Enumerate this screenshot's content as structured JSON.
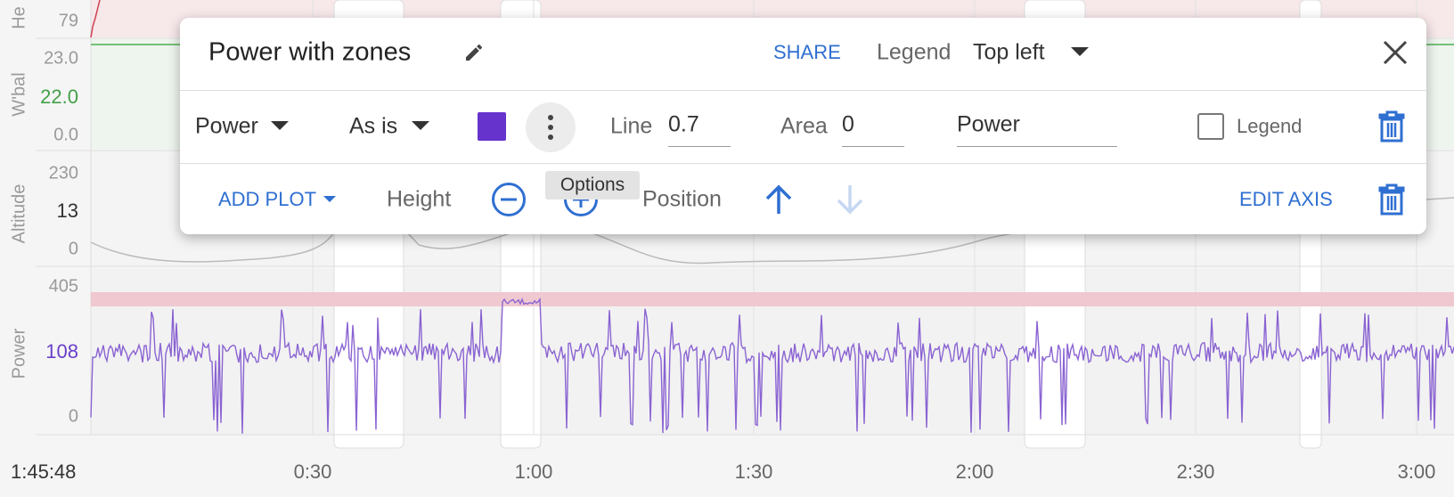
{
  "heart": {
    "label": "He",
    "ticks": [
      "79"
    ]
  },
  "wbal": {
    "label": "W'bal",
    "ticks": [
      "23.0",
      "22.0",
      "0.0"
    ]
  },
  "altitude": {
    "label": "Altitude",
    "ticks": [
      "230",
      "13",
      "0"
    ]
  },
  "power": {
    "label": "Power",
    "ticks": [
      "405",
      "108",
      "0"
    ]
  },
  "x_axis": {
    "ticks": [
      "1:45:48",
      "0:30",
      "1:00",
      "1:30",
      "2:00",
      "2:30",
      "3:00"
    ]
  },
  "dialog": {
    "title": "Power with zones",
    "share": "SHARE",
    "legend_label": "Legend",
    "legend_position": "Top left",
    "series_row": {
      "field": "Power",
      "transform": "As is",
      "line_label": "Line",
      "line_value": "0.7",
      "area_label": "Area",
      "area_value": "0",
      "name": "Power",
      "legend_checkbox": "Legend"
    },
    "tooltip": "Options",
    "axis_row": {
      "add_plot": "ADD PLOT",
      "height": "Height",
      "position": "Position",
      "edit_axis": "EDIT AXIS"
    }
  }
}
